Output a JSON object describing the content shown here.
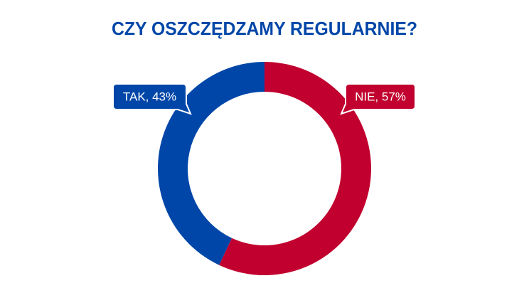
{
  "chart_data": {
    "type": "donut",
    "title": "CZY OSZCZĘDZAMY REGULARNIE?",
    "values": [
      57,
      43
    ],
    "value_labels": [
      "NIE, 57%",
      "TAK, 43%"
    ],
    "colors": [
      "#c1002f",
      "#0046a8"
    ]
  }
}
